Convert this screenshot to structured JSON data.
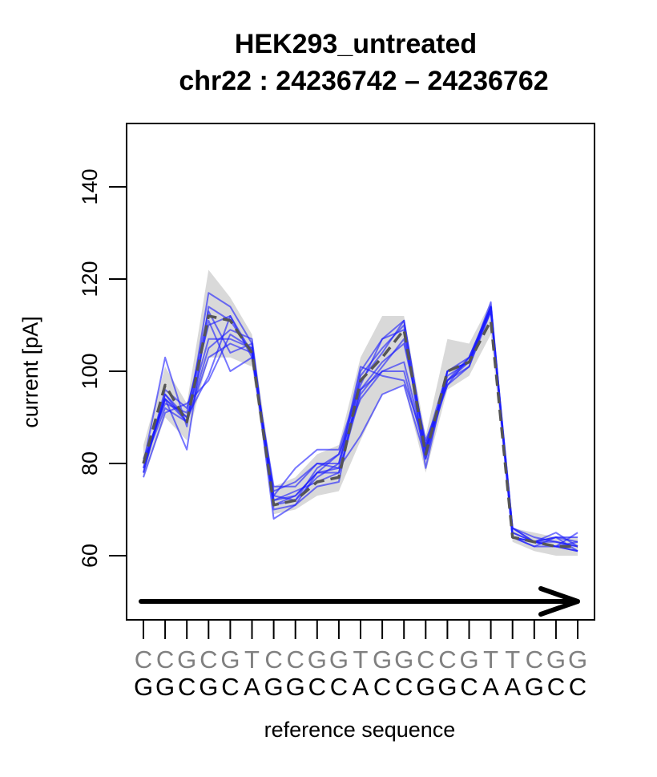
{
  "chart_data": {
    "type": "line",
    "title": "HEK293_untreated",
    "subtitle": "chr22 : 24236742 – 24236762",
    "xlabel": "reference sequence",
    "ylabel": "current [pA]",
    "ylim": [
      45,
      155
    ],
    "yticks": [
      60,
      80,
      100,
      120,
      140
    ],
    "sequence_top": [
      "C",
      "C",
      "G",
      "C",
      "G",
      "T",
      "C",
      "C",
      "G",
      "G",
      "T",
      "G",
      "G",
      "C",
      "C",
      "G",
      "T",
      "T",
      "C",
      "G",
      "G"
    ],
    "sequence_bottom": [
      "G",
      "G",
      "C",
      "G",
      "C",
      "A",
      "G",
      "G",
      "C",
      "C",
      "A",
      "C",
      "C",
      "G",
      "G",
      "C",
      "A",
      "A",
      "G",
      "C",
      "C"
    ],
    "strand_arrow": "left-to-right",
    "colors": {
      "reads": "#1a1aff",
      "mean": "#555555",
      "band": "#d9d9d9"
    },
    "mean": [
      80,
      97,
      89,
      112,
      111,
      104,
      71,
      72,
      76,
      77,
      98,
      103,
      109,
      82,
      100,
      102,
      111,
      64,
      63,
      62,
      62
    ],
    "band_upper": [
      84,
      101,
      93,
      122,
      116,
      108,
      75,
      77,
      82,
      84,
      103,
      112,
      112,
      86,
      107,
      106,
      115,
      66,
      65,
      64,
      64
    ],
    "band_lower": [
      77,
      90,
      85,
      103,
      103,
      101,
      69,
      70,
      73,
      74,
      85,
      95,
      97,
      78,
      96,
      99,
      108,
      63,
      61,
      60,
      60
    ],
    "series": [
      {
        "values": [
          80,
          103,
          88,
          117,
          114,
          106,
          71,
          73,
          78,
          79,
          100,
          107,
          111,
          83,
          98,
          103,
          113,
          66,
          63,
          64,
          64
        ]
      },
      {
        "values": [
          78,
          95,
          90,
          107,
          107,
          105,
          68,
          71,
          75,
          76,
          99,
          105,
          110,
          79,
          100,
          102,
          114,
          66,
          64,
          63,
          62
        ]
      },
      {
        "values": [
          79,
          94,
          83,
          114,
          111,
          104,
          73,
          72,
          77,
          80,
          101,
          99,
          98,
          84,
          100,
          102,
          115,
          64,
          62,
          64,
          63
        ]
      },
      {
        "values": [
          81,
          93,
          91,
          113,
          104,
          106,
          72,
          74,
          76,
          78,
          96,
          102,
          106,
          85,
          97,
          101,
          114,
          64,
          62,
          62,
          61
        ]
      },
      {
        "values": [
          80,
          92,
          89,
          111,
          100,
          103,
          75,
          75,
          80,
          79,
          86,
          95,
          97,
          81,
          100,
          103,
          114,
          65,
          63,
          63,
          62
        ]
      },
      {
        "values": [
          78,
          96,
          92,
          110,
          112,
          104,
          71,
          72,
          79,
          82,
          97,
          107,
          109,
          81,
          98,
          102,
          113,
          65,
          63,
          62,
          61
        ]
      },
      {
        "values": [
          80,
          94,
          89,
          105,
          109,
          107,
          70,
          71,
          78,
          78,
          95,
          101,
          107,
          84,
          98,
          101,
          113,
          64,
          63,
          65,
          62
        ]
      },
      {
        "values": [
          79,
          95,
          89,
          103,
          106,
          104,
          74,
          76,
          80,
          80,
          96,
          100,
          102,
          83,
          97,
          103,
          114,
          64,
          63,
          62,
          63
        ]
      },
      {
        "values": [
          80,
          94,
          90,
          99,
          112,
          103,
          73,
          79,
          83,
          83,
          98,
          104,
          111,
          83,
          99,
          102,
          114,
          64,
          63,
          62,
          65
        ]
      },
      {
        "values": [
          77,
          91,
          93,
          98,
          108,
          105,
          72,
          73,
          78,
          82,
          94,
          100,
          100,
          82,
          100,
          102,
          114,
          66,
          63,
          64,
          61
        ]
      }
    ]
  }
}
